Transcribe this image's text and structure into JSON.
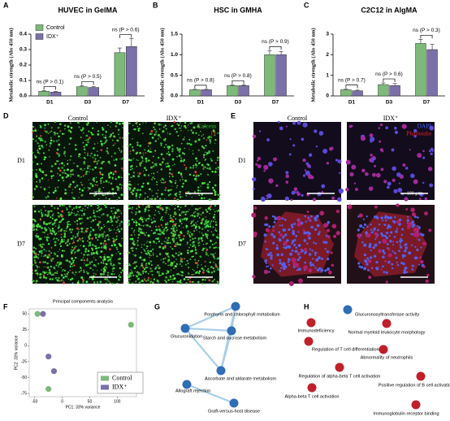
{
  "panel_labels": [
    "A",
    "B",
    "C",
    "D",
    "E",
    "F",
    "G",
    "H"
  ],
  "chart_data": [
    {
      "type": "bar",
      "title": "HUVEC in GelMA",
      "y_label": "Metabolic strength (Abs 450 nm)",
      "categories": [
        "D1",
        "D3",
        "D7"
      ],
      "series": [
        {
          "name": "Control",
          "color": "#7dba7a",
          "values": [
            0.03,
            0.06,
            0.28
          ],
          "errors": [
            0.004,
            0.006,
            0.03
          ]
        },
        {
          "name": "IDX⁺",
          "color": "#7b70a9",
          "values": [
            0.025,
            0.055,
            0.32
          ],
          "errors": [
            0.004,
            0.005,
            0.05
          ]
        }
      ],
      "ylim": [
        0,
        0.4
      ],
      "yticks": [
        {
          "value": 0,
          "label": "0.0"
        },
        0.1,
        0.2,
        0.3,
        0.4
      ],
      "annotations": [
        "ns (P > 0.1)",
        "ns (P > 0.5)",
        "ns (P > 0.6)"
      ],
      "legend": "upper left"
    },
    {
      "type": "bar",
      "title": "HSC in GMHA",
      "y_label": "Metabolic strength (Abs 450 nm)",
      "categories": [
        "D1",
        "D3",
        "D7"
      ],
      "series": [
        {
          "color": "#7dba7a",
          "values": [
            0.15,
            0.25,
            1.0
          ],
          "errors": [
            0.01,
            0.02,
            0.1
          ]
        },
        {
          "color": "#7b70a9",
          "values": [
            0.15,
            0.25,
            1.0
          ],
          "errors": [
            0.01,
            0.02,
            0.08
          ]
        }
      ],
      "ylim": [
        0,
        1.5
      ],
      "yticks": [
        {
          "value": 0,
          "label": "0.0"
        },
        0.5,
        {
          "value": 1,
          "label": "1.0"
        },
        1.5
      ],
      "annotations": [
        "ns (P > 0.8)",
        "ns (P > 0.8)",
        "ns (P > 0.9)"
      ]
    },
    {
      "type": "bar",
      "title": "C2C12 in AlgMA",
      "y_label": "Metabolic strength (Abs 450 nm)",
      "categories": [
        "D1",
        "D3",
        "D7"
      ],
      "series": [
        {
          "color": "#7dba7a",
          "values": [
            0.3,
            0.55,
            2.55
          ],
          "errors": [
            0.03,
            0.08,
            0.2
          ]
        },
        {
          "color": "#7b70a9",
          "values": [
            0.25,
            0.5,
            2.25
          ],
          "errors": [
            0.03,
            0.1,
            0.25
          ]
        }
      ],
      "ylim": [
        0,
        3
      ],
      "yticks": [
        0,
        1,
        2,
        3
      ],
      "annotations": [
        "ns (P > 0.7)",
        "ns (P > 0.6)",
        "ns (P > 0.3)"
      ]
    },
    {
      "type": "scatter",
      "title": "Principal components analysis",
      "x_label": "PC1: 33% variance",
      "y_label": "PC2: 33% variance",
      "series": [
        {
          "name": "Control",
          "color": "#7dba7a",
          "x": [
            -45,
            125,
            -25
          ],
          "y": [
            50,
            33,
            -68
          ]
        },
        {
          "name": "IDX⁺",
          "color": "#7b70a9",
          "x": [
            -35,
            -25,
            -15
          ],
          "y": [
            50,
            -17,
            -40
          ]
        }
      ],
      "xlim": [
        -60,
        135
      ],
      "xticks": [
        -50,
        0,
        50,
        100
      ],
      "ylim": [
        -80,
        58
      ],
      "yticks": [
        -75,
        -50,
        -25,
        0,
        25,
        50
      ],
      "legend": "lower right"
    }
  ],
  "panel_d": {
    "columns": [
      "Control",
      "IDX⁺"
    ],
    "rows": [
      "D1",
      "D7"
    ],
    "stains": [
      {
        "label": "Calcein",
        "color": "#33cc33"
      },
      {
        "label": "PI",
        "color": "#ee2222"
      }
    ],
    "scale": "500 μm"
  },
  "panel_e": {
    "columns": [
      "Control",
      "IDX⁺"
    ],
    "rows": [
      "D1",
      "D7"
    ],
    "stains": [
      {
        "label": "DAPI",
        "color": "#4466ff"
      },
      {
        "label": "Phalloidin",
        "color": "#ee2222"
      }
    ],
    "scale": "100 μm"
  },
  "panel_g": {
    "nodes": [
      {
        "label": "Porphyrin and chlorophyll metabolism",
        "color": "#2f6db5"
      },
      {
        "label": "Starch and sucrose metabolism",
        "color": "#2f6db5"
      },
      {
        "label": "Glucuronidation",
        "color": "#2f6db5"
      },
      {
        "label": "Ascorbate and aldarate metabolism",
        "color": "#2f6db5"
      },
      {
        "label": "Allograft rejection",
        "color": "#2f6db5"
      },
      {
        "label": "Graft-versus-host disease",
        "color": "#2f6db5"
      }
    ]
  },
  "panel_h": {
    "nodes": [
      {
        "label": "Glucuronosyltransferase activity",
        "color": "#2f6db5"
      },
      {
        "label": "Immunodeficiency",
        "color": "#c0202a"
      },
      {
        "label": "Normal myeloid leukocyte morphology",
        "color": "#c0202a"
      },
      {
        "label": "Regulation of T cell differentiation",
        "color": "#c0202a"
      },
      {
        "label": "Abnormality of neutrophils",
        "color": "#c0202a"
      },
      {
        "label": "Regulation of alpha-beta T cell activation",
        "color": "#c0202a"
      },
      {
        "label": "Positive regulation of B cell activation",
        "color": "#c0202a"
      },
      {
        "label": "Alpha-beta T cell activation",
        "color": "#c0202a"
      },
      {
        "label": "Immunoglobulin receptor binding",
        "color": "#c0202a"
      }
    ]
  }
}
